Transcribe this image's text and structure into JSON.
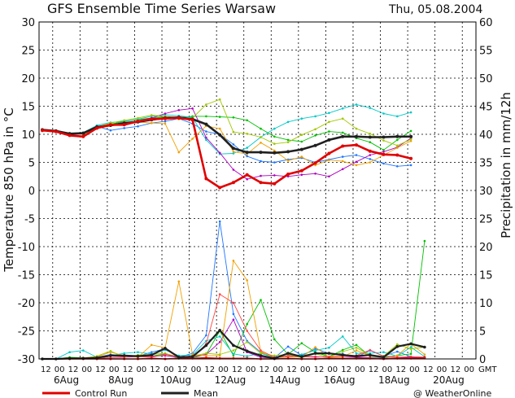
{
  "title": "GFS Ensemble Time Series Warsaw",
  "date": "Thu, 05.08.2004",
  "credit": "@ WeatherOnline",
  "gmt_label": "GMT",
  "legend": {
    "control": "Control Run",
    "mean": "Mean"
  },
  "chart_data": {
    "type": "line",
    "ylabel": "Temperature 850 hPa in °C",
    "y2label": "Precipitation in mm/12h",
    "ylim": [
      -30,
      30
    ],
    "y2lim": [
      0,
      60
    ],
    "yticks": [
      30,
      25,
      20,
      15,
      10,
      5,
      0,
      -5,
      -10,
      -15,
      -20,
      -25,
      -30
    ],
    "y2ticks": [
      60,
      55,
      50,
      45,
      40,
      35,
      30,
      25,
      20,
      15,
      10,
      5,
      0
    ],
    "x_hour_labels": [
      "12",
      "00",
      "12",
      "00",
      "12",
      "00",
      "12",
      "00",
      "12",
      "00",
      "12",
      "00",
      "12",
      "00",
      "12",
      "00",
      "12",
      "00",
      "12",
      "00",
      "12",
      "00",
      "12",
      "00",
      "12",
      "00",
      "12",
      "00",
      "12",
      "00",
      "12",
      "00"
    ],
    "x_date_labels": [
      {
        "label": "6Aug",
        "index": 1.5
      },
      {
        "label": "8Aug",
        "index": 5.5
      },
      {
        "label": "10Aug",
        "index": 9.5
      },
      {
        "label": "12Aug",
        "index": 13.5
      },
      {
        "label": "14Aug",
        "index": 17.5
      },
      {
        "label": "16Aug",
        "index": 21.5
      },
      {
        "label": "18Aug",
        "index": 25.5
      },
      {
        "label": "20Aug",
        "index": 29.5
      }
    ],
    "grid": true,
    "control_run": {
      "name": "Control Run",
      "color": "#e00000",
      "values": [
        10.7,
        10.5,
        9.8,
        9.6,
        11.1,
        11.7,
        11.7,
        12.3,
        12.7,
        12.8,
        12.9,
        12.6,
        2.1,
        0.5,
        1.4,
        2.8,
        1.4,
        1.2,
        2.9,
        3.5,
        4.9,
        6.6,
        7.9,
        8.1,
        7.0,
        6.4,
        6.3,
        5.7
      ]
    },
    "mean": {
      "name": "Mean",
      "color": "#202020",
      "values": [
        10.8,
        10.6,
        10.1,
        10.2,
        11.3,
        11.6,
        12.0,
        12.2,
        12.6,
        12.9,
        13.0,
        12.7,
        11.8,
        9.9,
        7.5,
        6.8,
        6.8,
        6.7,
        6.9,
        7.3,
        8.0,
        9.0,
        9.6,
        9.6,
        9.5,
        9.5,
        9.6,
        9.6
      ]
    },
    "members": [
      {
        "color": "#1f77ff",
        "values": [
          10.8,
          10.5,
          10.0,
          10.3,
          11.4,
          10.7,
          11.1,
          11.4,
          12.0,
          12.3,
          12.8,
          11.9,
          10.5,
          10.0,
          8.2,
          6.1,
          5.2,
          5.0,
          5.5,
          5.8,
          5.0,
          5.5,
          6.0,
          6.3,
          5.6,
          4.8,
          4.3,
          4.5
        ]
      },
      {
        "color": "#00c000",
        "values": [
          10.9,
          10.6,
          10.0,
          10.1,
          11.1,
          11.8,
          12.3,
          12.6,
          12.9,
          13.2,
          13.0,
          13.2,
          13.2,
          13.1,
          13.0,
          12.5,
          11.0,
          9.6,
          9.0,
          8.7,
          9.8,
          10.5,
          10.3,
          9.3,
          8.6,
          7.2,
          9.0,
          10.6
        ]
      },
      {
        "color": "#00c8c8",
        "values": [
          10.9,
          10.7,
          10.1,
          10.3,
          11.6,
          12.1,
          12.3,
          12.7,
          13.2,
          13.5,
          13.3,
          13.0,
          9.0,
          6.5,
          6.6,
          7.6,
          9.5,
          11.0,
          12.2,
          12.8,
          13.2,
          13.8,
          14.6,
          15.3,
          14.7,
          13.7,
          13.2,
          13.9
        ]
      },
      {
        "color": "#b000c0",
        "values": [
          10.8,
          10.4,
          10.0,
          10.0,
          11.2,
          11.6,
          12.0,
          12.4,
          12.9,
          13.7,
          14.3,
          14.6,
          9.4,
          6.7,
          3.7,
          2.0,
          2.6,
          2.7,
          2.5,
          2.8,
          3.0,
          2.5,
          3.8,
          5.1,
          6.3,
          6.9,
          7.7,
          9.3
        ]
      },
      {
        "color": "#f0a000",
        "values": [
          10.7,
          10.4,
          10.1,
          10.0,
          11.0,
          11.5,
          11.7,
          12.2,
          12.0,
          11.9,
          6.8,
          9.2,
          11.5,
          11.0,
          6.9,
          6.5,
          8.5,
          7.1,
          5.3,
          6.0,
          4.5,
          5.4,
          5.2,
          4.5,
          5.0,
          6.3,
          7.6,
          8.8
        ]
      },
      {
        "color": "#a0c800",
        "values": [
          10.8,
          10.6,
          10.2,
          10.1,
          11.3,
          12.0,
          12.5,
          12.9,
          13.4,
          13.2,
          12.7,
          12.9,
          15.3,
          16.2,
          10.4,
          10.1,
          9.5,
          8.3,
          8.6,
          9.9,
          10.9,
          12.2,
          12.8,
          11.0,
          10.1,
          8.9,
          8.0,
          9.1
        ]
      }
    ],
    "precip_mean": {
      "name": "Mean",
      "color": "#202020",
      "values": [
        0.0,
        0.0,
        0.1,
        0.1,
        0.2,
        0.6,
        0.6,
        0.5,
        0.7,
        1.9,
        0.3,
        0.4,
        2.4,
        5.1,
        2.4,
        1.4,
        0.6,
        0.1,
        1.0,
        0.4,
        1.0,
        1.0,
        0.7,
        0.5,
        0.7,
        0.3,
        2.2,
        2.7,
        2.1
      ]
    },
    "precip_control": {
      "name": "Control Run",
      "color": "#e00000",
      "values": [
        0.0,
        0.0,
        0.0,
        0.0,
        0.0,
        0.0,
        0.0,
        0.0,
        0.1,
        0.0,
        0.1,
        0.1,
        0.2,
        0.1,
        0.1,
        0.1,
        0.0,
        0.0,
        0.1,
        0.0,
        0.0,
        0.1,
        0.1,
        0.1,
        0.1,
        0.0,
        0.1,
        0.1,
        0.2
      ]
    },
    "precip_members": [
      {
        "color": "#1f77ff",
        "values": [
          0.0,
          0.0,
          0.2,
          0.1,
          0.3,
          0.8,
          0.6,
          0.5,
          1.2,
          1.8,
          0.3,
          1.0,
          4.2,
          24.5,
          8.0,
          3.2,
          1.2,
          0.2,
          2.2,
          0.6,
          1.8,
          1.0,
          0.9,
          0.3,
          1.5,
          0.5,
          1.3,
          0.4,
          0.3
        ]
      },
      {
        "color": "#00c000",
        "values": [
          0.0,
          0.0,
          0.3,
          0.2,
          0.1,
          0.5,
          0.6,
          0.4,
          0.5,
          0.9,
          0.1,
          0.2,
          0.8,
          5.0,
          0.6,
          6.2,
          10.5,
          3.5,
          0.8,
          2.8,
          1.2,
          0.4,
          1.6,
          2.5,
          0.5,
          0.2,
          0.6,
          0.9,
          21.0
        ]
      },
      {
        "color": "#00c8c8",
        "values": [
          0.0,
          0.0,
          1.2,
          1.5,
          0.3,
          0.6,
          1.0,
          1.2,
          0.9,
          1.6,
          0.6,
          0.7,
          3.2,
          4.0,
          0.9,
          0.5,
          1.0,
          0.2,
          0.4,
          0.8,
          1.5,
          2.0,
          4.0,
          1.0,
          1.0,
          1.2,
          0.5,
          2.1,
          0.4
        ]
      },
      {
        "color": "#b000c0",
        "values": [
          0.0,
          0.0,
          0.1,
          0.1,
          0.0,
          0.2,
          0.3,
          0.4,
          0.5,
          0.6,
          0.3,
          0.4,
          0.8,
          3.0,
          7.0,
          1.2,
          0.3,
          0.1,
          0.6,
          0.4,
          0.4,
          0.3,
          0.5,
          0.3,
          0.2,
          0.1,
          0.2,
          0.3,
          0.1
        ]
      },
      {
        "color": "#f0a000",
        "values": [
          0.0,
          0.0,
          0.1,
          0.2,
          0.4,
          1.2,
          0.6,
          0.3,
          2.5,
          2.0,
          13.8,
          0.8,
          0.6,
          0.6,
          17.5,
          14.0,
          1.3,
          0.2,
          0.4,
          0.3,
          2.1,
          0.3,
          0.4,
          1.5,
          0.6,
          0.4,
          0.6,
          2.7,
          0.8
        ]
      },
      {
        "color": "#a0c800",
        "values": [
          0.0,
          0.0,
          0.0,
          0.1,
          0.5,
          1.4,
          0.3,
          0.7,
          0.8,
          1.0,
          0.3,
          0.5,
          1.0,
          0.8,
          1.5,
          3.0,
          1.0,
          0.6,
          0.8,
          0.2,
          0.9,
          0.3,
          1.3,
          2.0,
          0.7,
          0.5,
          2.6,
          1.8,
          2.1
        ]
      },
      {
        "color": "#ff4444",
        "values": [
          0.0,
          0.0,
          0.0,
          0.1,
          0.1,
          0.2,
          0.4,
          0.4,
          0.3,
          0.8,
          0.4,
          0.2,
          2.7,
          11.5,
          10.0,
          5.0,
          1.5,
          0.3,
          0.5,
          0.4,
          0.3,
          0.4,
          0.5,
          0.6,
          1.6,
          0.5,
          0.3,
          0.4,
          0.3
        ]
      }
    ]
  }
}
